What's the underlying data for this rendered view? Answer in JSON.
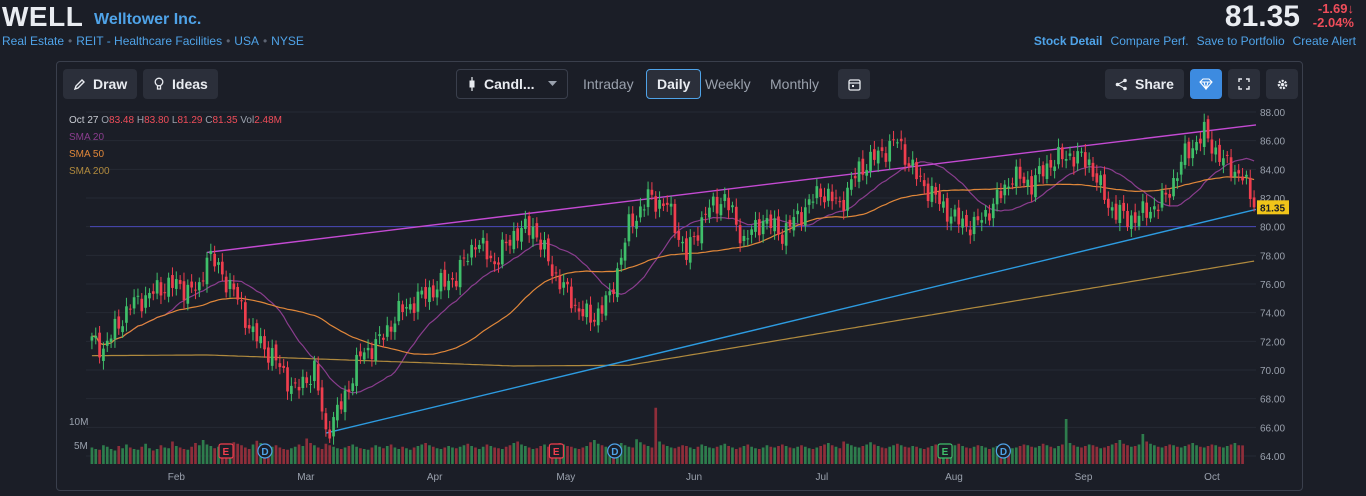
{
  "header": {
    "ticker": "WELL",
    "company": "Welltower Inc.",
    "breadcrumbs": [
      "Real Estate",
      "REIT - Healthcare Facilities",
      "USA",
      "NYSE"
    ],
    "price": "81.35",
    "change": "-1.69",
    "change_pct": "-2.04%",
    "links": [
      "Stock Detail",
      "Compare Perf.",
      "Save to Portfolio",
      "Create Alert"
    ]
  },
  "toolbar": {
    "draw": "Draw",
    "ideas": "Ideas",
    "chart_type": "Candl...",
    "tabs": [
      "Intraday",
      "Daily",
      "Weekly",
      "Monthly"
    ],
    "active_tab": "Daily",
    "share": "Share"
  },
  "ohlc": {
    "date": "Oct 27",
    "o_label": "O",
    "o": "83.48",
    "h_label": "H",
    "h": "83.80",
    "l_label": "L",
    "l": "81.29",
    "c_label": "C",
    "c": "81.35",
    "vol_label": "Vol",
    "vol": "2.48M"
  },
  "legend": [
    {
      "name": "SMA 20",
      "color": "#8a3d8e"
    },
    {
      "name": "SMA 50",
      "color": "#e0873a"
    },
    {
      "name": "SMA 200",
      "color": "#b08a3e"
    }
  ],
  "chart_data": {
    "type": "candlestick",
    "y_ticks": [
      "88.00",
      "86.00",
      "84.00",
      "82.00",
      "80.00",
      "78.00",
      "76.00",
      "74.00",
      "72.00",
      "70.00",
      "68.00",
      "66.00",
      "64.00"
    ],
    "ylim": [
      64,
      88
    ],
    "last_price_label": "81.35",
    "volume_ticks": [
      "10M",
      "5M"
    ],
    "x_labels": [
      "Feb",
      "Mar",
      "Apr",
      "May",
      "Jun",
      "Jul",
      "Aug",
      "Sep",
      "Oct"
    ],
    "events": [
      {
        "label": "E",
        "month_index": 0.45
      },
      {
        "label": "D",
        "month_index": 0.75
      },
      {
        "label": "E",
        "month_index": 3.0
      },
      {
        "label": "D",
        "month_index": 3.45
      },
      {
        "label": "E",
        "month_index": 6.0
      },
      {
        "label": "D",
        "month_index": 6.45
      }
    ],
    "anchors": [
      [
        0,
        72.0
      ],
      [
        3,
        71.5
      ],
      [
        10,
        74.5
      ],
      [
        20,
        76.0
      ],
      [
        28,
        75.5
      ],
      [
        30,
        78.2
      ],
      [
        37,
        75.5
      ],
      [
        42,
        72.5
      ],
      [
        47,
        71.0
      ],
      [
        53,
        68.5
      ],
      [
        58,
        70.0
      ],
      [
        61,
        65.6
      ],
      [
        65,
        67.5
      ],
      [
        70,
        71.0
      ],
      [
        75,
        72.0
      ],
      [
        80,
        74.0
      ],
      [
        88,
        75.5
      ],
      [
        95,
        76.5
      ],
      [
        100,
        79.0
      ],
      [
        105,
        77.5
      ],
      [
        110,
        79.5
      ],
      [
        115,
        80.0
      ],
      [
        120,
        77.0
      ],
      [
        126,
        74.5
      ],
      [
        130,
        73.5
      ],
      [
        135,
        75.0
      ],
      [
        140,
        80.0
      ],
      [
        145,
        82.0
      ],
      [
        150,
        81.5
      ],
      [
        155,
        78.0
      ],
      [
        160,
        81.0
      ],
      [
        165,
        82.0
      ],
      [
        170,
        79.0
      ],
      [
        175,
        80.5
      ],
      [
        180,
        79.5
      ],
      [
        185,
        81.0
      ],
      [
        190,
        82.5
      ],
      [
        195,
        81.5
      ],
      [
        200,
        84.0
      ],
      [
        205,
        85.0
      ],
      [
        210,
        86.0
      ],
      [
        215,
        83.5
      ],
      [
        220,
        82.0
      ],
      [
        225,
        80.5
      ],
      [
        230,
        80.0
      ],
      [
        235,
        81.5
      ],
      [
        240,
        83.5
      ],
      [
        245,
        83.0
      ],
      [
        250,
        84.5
      ],
      [
        255,
        85.0
      ],
      [
        260,
        84.5
      ],
      [
        265,
        81.5
      ],
      [
        270,
        80.5
      ],
      [
        275,
        81.0
      ],
      [
        280,
        82.0
      ],
      [
        285,
        85.0
      ],
      [
        290,
        86.5
      ],
      [
        295,
        84.5
      ],
      [
        300,
        83.5
      ],
      [
        303,
        81.35
      ]
    ],
    "volumes": [
      2.2,
      2.0,
      1.9,
      2.5,
      2.3,
      2.0,
      1.8,
      2.4,
      2.1,
      2.6,
      2.2,
      2.0,
      1.9,
      2.3,
      2.7,
      2.1,
      1.8,
      2.0,
      2.5,
      2.2,
      2.1,
      3.0,
      2.4,
      2.2,
      2.0,
      1.9,
      2.3,
      2.8,
      2.5,
      3.2,
      2.6,
      2.4,
      2.1,
      2.3,
      2.0,
      2.2,
      2.4,
      2.9,
      2.7,
      2.5,
      2.2,
      2.0,
      2.6,
      3.1,
      2.8,
      2.4,
      2.1,
      2.3,
      2.5,
      2.2,
      2.0,
      1.9,
      2.1,
      2.3,
      2.6,
      2.4,
      3.4,
      2.8,
      2.5,
      2.2,
      2.0,
      2.7,
      2.5,
      2.3,
      2.1,
      2.0,
      2.2,
      2.4,
      2.6,
      2.3,
      2.1,
      2.0,
      1.9,
      2.2,
      2.5,
      2.3,
      2.1,
      2.4,
      2.6,
      2.2,
      2.0,
      2.3,
      2.1,
      1.9,
      2.2,
      2.4,
      2.6,
      2.8,
      2.5,
      2.3,
      2.1,
      2.0,
      2.2,
      2.4,
      2.2,
      2.1,
      2.3,
      2.5,
      2.7,
      2.4,
      2.2,
      2.0,
      2.3,
      2.6,
      2.4,
      2.2,
      2.1,
      2.0,
      2.3,
      2.5,
      2.8,
      3.0,
      2.6,
      2.4,
      2.2,
      2.0,
      2.1,
      2.4,
      2.6,
      2.3,
      2.2,
      2.5,
      2.8,
      2.6,
      2.4,
      2.3,
      2.1,
      2.0,
      2.2,
      2.4,
      2.9,
      3.2,
      2.7,
      2.5,
      2.3,
      2.1,
      2.4,
      2.6,
      2.8,
      2.5,
      2.3,
      2.2,
      3.3,
      2.9,
      2.6,
      2.4,
      2.2,
      7.5,
      3.0,
      2.6,
      2.4,
      2.2,
      2.1,
      2.3,
      2.5,
      2.4,
      2.2,
      2.0,
      2.3,
      2.6,
      2.4,
      2.2,
      2.1,
      2.3,
      2.5,
      2.7,
      2.4,
      2.2,
      2.0,
      2.2,
      2.4,
      2.6,
      2.3,
      2.1,
      2.0,
      2.2,
      2.5,
      2.3,
      2.2,
      2.4,
      2.6,
      2.4,
      2.2,
      2.1,
      2.3,
      2.5,
      2.3,
      2.1,
      2.0,
      2.2,
      2.4,
      2.6,
      2.8,
      2.5,
      2.3,
      2.1,
      3.0,
      2.7,
      2.5,
      2.3,
      2.2,
      2.4,
      2.6,
      2.9,
      2.6,
      2.4,
      2.2,
      2.1,
      2.3,
      2.5,
      2.7,
      2.5,
      2.3,
      2.2,
      2.4,
      2.3,
      2.1,
      2.0,
      2.2,
      2.4,
      2.6,
      2.4,
      2.2,
      2.1,
      2.3,
      2.5,
      2.7,
      2.4,
      2.2,
      2.1,
      2.3,
      2.5,
      2.4,
      2.2,
      2.0,
      2.2,
      2.4,
      2.6,
      2.4,
      2.3,
      2.1,
      2.2,
      2.4,
      2.6,
      2.5,
      2.3,
      2.2,
      2.4,
      2.7,
      2.5,
      2.3,
      2.1,
      2.4,
      2.6,
      6.0,
      2.8,
      2.5,
      2.3,
      2.2,
      2.4,
      2.6,
      2.5,
      2.3,
      2.1,
      2.2,
      2.4,
      2.6,
      2.8,
      3.2,
      2.7,
      2.5,
      2.3,
      2.4,
      2.6,
      4.0,
      3.0,
      2.7,
      2.5,
      2.3,
      2.2,
      2.4,
      2.6,
      2.5,
      2.3,
      2.2,
      2.4,
      2.6,
      2.8,
      2.5,
      2.3,
      2.2,
      2.4,
      2.6,
      2.5,
      2.3,
      2.2,
      2.4,
      2.6,
      2.8,
      2.5,
      2.48
    ]
  }
}
